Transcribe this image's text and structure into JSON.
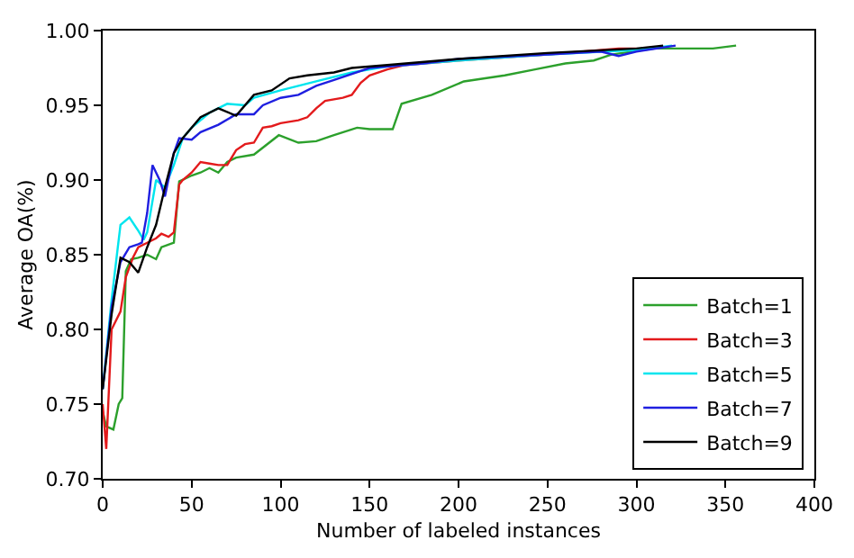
{
  "chart_data": {
    "type": "line",
    "xlabel": "Number of labeled instances",
    "ylabel": "Average OA(%)",
    "xlim": [
      0,
      400
    ],
    "ylim": [
      0.7,
      1.0
    ],
    "xticks": [
      0,
      50,
      100,
      150,
      200,
      250,
      300,
      350,
      400
    ],
    "yticks": [
      {
        "value": 0.7,
        "label": "0.70"
      },
      {
        "value": 0.75,
        "label": "0.75"
      },
      {
        "value": 0.8,
        "label": "0.80"
      },
      {
        "value": 0.85,
        "label": "0.85"
      },
      {
        "value": 0.9,
        "label": "0.90"
      },
      {
        "value": 0.95,
        "label": "0.95"
      },
      {
        "value": 1.0,
        "label": "1.00"
      }
    ],
    "legend": "bottom right",
    "marker": "none",
    "line_style": "solid",
    "series": [
      {
        "name": "Batch=1",
        "color": "#2ca02c",
        "x": [
          0,
          2,
          6,
          9,
          11,
          13,
          16,
          20,
          25,
          30,
          33,
          40,
          43,
          50,
          55,
          60,
          65,
          70,
          75,
          85,
          99,
          110,
          120,
          130,
          143,
          150,
          163,
          168,
          185,
          203,
          226,
          243,
          260,
          276,
          286,
          310,
          343,
          356
        ],
        "values": [
          0.745,
          0.735,
          0.733,
          0.75,
          0.754,
          0.839,
          0.847,
          0.848,
          0.85,
          0.847,
          0.855,
          0.858,
          0.899,
          0.903,
          0.905,
          0.908,
          0.905,
          0.912,
          0.915,
          0.917,
          0.93,
          0.925,
          0.926,
          0.93,
          0.935,
          0.934,
          0.934,
          0.951,
          0.957,
          0.966,
          0.97,
          0.974,
          0.978,
          0.98,
          0.984,
          0.988,
          0.988,
          0.99
        ]
      },
      {
        "name": "Batch=3",
        "color": "#e31a1c",
        "x": [
          0,
          2,
          5,
          10,
          13,
          17,
          20,
          25,
          30,
          33,
          37,
          40,
          43,
          45,
          50,
          55,
          60,
          65,
          70,
          75,
          80,
          85,
          90,
          95,
          100,
          110,
          115,
          120,
          125,
          135,
          140,
          145,
          150,
          160,
          170,
          200,
          250,
          290,
          300
        ],
        "values": [
          0.75,
          0.72,
          0.8,
          0.812,
          0.835,
          0.848,
          0.855,
          0.858,
          0.861,
          0.864,
          0.862,
          0.865,
          0.897,
          0.9,
          0.905,
          0.912,
          0.911,
          0.91,
          0.91,
          0.92,
          0.924,
          0.925,
          0.935,
          0.936,
          0.938,
          0.94,
          0.942,
          0.948,
          0.953,
          0.955,
          0.957,
          0.965,
          0.97,
          0.974,
          0.977,
          0.98,
          0.984,
          0.988,
          0.988
        ]
      },
      {
        "name": "Batch=5",
        "color": "#00e5ee",
        "x": [
          0,
          5,
          8,
          10,
          15,
          20,
          23,
          25,
          30,
          35,
          40,
          45,
          50,
          60,
          70,
          80,
          85,
          100,
          120,
          140,
          160,
          200,
          250,
          300,
          320
        ],
        "values": [
          0.76,
          0.82,
          0.85,
          0.87,
          0.875,
          0.866,
          0.86,
          0.865,
          0.9,
          0.895,
          0.91,
          0.928,
          0.935,
          0.945,
          0.951,
          0.95,
          0.955,
          0.96,
          0.966,
          0.972,
          0.976,
          0.98,
          0.984,
          0.987,
          0.99
        ]
      },
      {
        "name": "Batch=7",
        "color": "#1f1fe0",
        "x": [
          0,
          5,
          10,
          15,
          20,
          22,
          25,
          28,
          32,
          35,
          40,
          43,
          50,
          55,
          65,
          75,
          85,
          90,
          100,
          110,
          120,
          130,
          150,
          180,
          200,
          250,
          280,
          290,
          300,
          322
        ],
        "values": [
          0.76,
          0.815,
          0.845,
          0.855,
          0.857,
          0.858,
          0.878,
          0.91,
          0.9,
          0.889,
          0.918,
          0.928,
          0.927,
          0.932,
          0.937,
          0.944,
          0.944,
          0.95,
          0.955,
          0.957,
          0.963,
          0.967,
          0.975,
          0.978,
          0.981,
          0.984,
          0.986,
          0.983,
          0.986,
          0.99
        ]
      },
      {
        "name": "Batch=9",
        "color": "#000000",
        "x": [
          0,
          5,
          10,
          15,
          20,
          25,
          30,
          35,
          40,
          45,
          55,
          65,
          75,
          85,
          95,
          105,
          115,
          130,
          140,
          160,
          200,
          250,
          300,
          315
        ],
        "values": [
          0.76,
          0.81,
          0.848,
          0.845,
          0.838,
          0.855,
          0.87,
          0.895,
          0.918,
          0.928,
          0.942,
          0.948,
          0.943,
          0.957,
          0.96,
          0.968,
          0.97,
          0.972,
          0.975,
          0.977,
          0.981,
          0.985,
          0.988,
          0.99
        ]
      }
    ]
  }
}
